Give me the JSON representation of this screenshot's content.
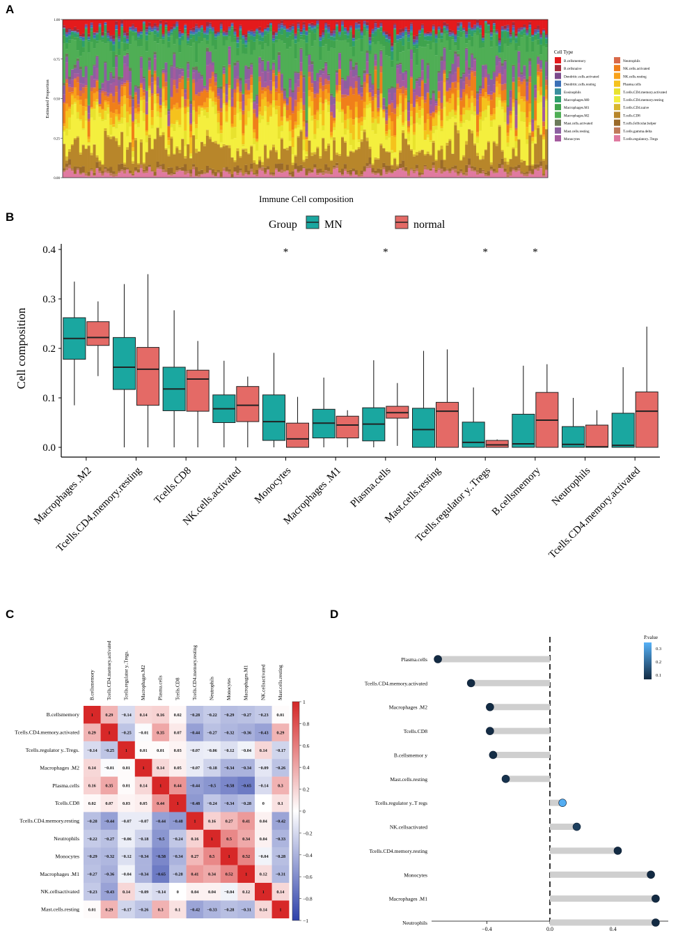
{
  "panel_labels": {
    "a": "A",
    "b": "B",
    "c": "C",
    "d": "D"
  },
  "chart_data": [
    {
      "id": "A",
      "type": "bar",
      "stacked": true,
      "title": "",
      "xlabel": "Immune Cell composition",
      "ylabel": "Estimated Proportion",
      "ylim": [
        0,
        1
      ],
      "yticks": [
        "0.00",
        "0.25",
        "0.50",
        "0.75",
        "1.00"
      ],
      "n_samples": 176,
      "legend_title": "Cell Type",
      "legend_position": "right",
      "cell_types": [
        {
          "name": "B.cellsmemory",
          "color": "#e41a1c",
          "mean": 0.05
        },
        {
          "name": "B.cellsnaive",
          "color": "#a52a3a",
          "mean": 0.01
        },
        {
          "name": "Dendritic.cells.activated",
          "color": "#7b4a8c",
          "mean": 0.01
        },
        {
          "name": "Dendritic.cells.resting",
          "color": "#3b6fb6",
          "mean": 0.01
        },
        {
          "name": "Eosinophils",
          "color": "#3a8f9e",
          "mean": 0.005
        },
        {
          "name": "Macrophages.M0",
          "color": "#2e9e6b",
          "mean": 0.02
        },
        {
          "name": "Macrophages.M1",
          "color": "#3fa34d",
          "mean": 0.05
        },
        {
          "name": "Macrophages.M2",
          "color": "#4fae55",
          "mean": 0.18
        },
        {
          "name": "Mast.cells.activated",
          "color": "#6b7a5a",
          "mean": 0.01
        },
        {
          "name": "Mast.cells.resting",
          "color": "#8c5fa0",
          "mean": 0.05
        },
        {
          "name": "Monocytes",
          "color": "#a45a9e",
          "mean": 0.05
        },
        {
          "name": "Neutrophils",
          "color": "#d96a4a",
          "mean": 0.02
        },
        {
          "name": "NK.cells.activated",
          "color": "#f07f1a",
          "mean": 0.07
        },
        {
          "name": "NK.cells.resting",
          "color": "#f9a21a",
          "mean": 0.03
        },
        {
          "name": "Plasma.cells",
          "color": "#f5c21d",
          "mean": 0.05
        },
        {
          "name": "T.cells.CD4.memory.activated",
          "color": "#e8e22e",
          "mean": 0.04
        },
        {
          "name": "T.cells.CD4.memory.resting",
          "color": "#f4ef3e",
          "mean": 0.15
        },
        {
          "name": "T.cells.CD4.naive",
          "color": "#d8b62e",
          "mean": 0.01
        },
        {
          "name": "T.cells.CD8",
          "color": "#b8862a",
          "mean": 0.11
        },
        {
          "name": "T.cells.follicular.helper",
          "color": "#9a6a2a",
          "mean": 0.02
        },
        {
          "name": "T.cells.gamma.delta",
          "color": "#c07a5a",
          "mean": 0.01
        },
        {
          "name": "T.cells.regulatory..Tregs",
          "color": "#e07aa0",
          "mean": 0.03
        }
      ]
    },
    {
      "id": "B",
      "type": "box",
      "xlabel": "",
      "ylabel": "Cell composition",
      "ylim": [
        0,
        0.4
      ],
      "yticks": [
        "0.0",
        "0.1",
        "0.2",
        "0.3",
        "0.4"
      ],
      "legend_title": "Group",
      "legend_position": "top",
      "groups": [
        {
          "name": "MN",
          "color": "#1aa7a0"
        },
        {
          "name": "normal",
          "color": "#e46a66"
        }
      ],
      "categories": [
        "Macrophages.M2",
        "T.cells.CD4.memory.resting",
        "T.cells.CD8",
        "NK.cells.activated",
        "Monocytes",
        "Macrophages.M1",
        "Plasma.cells",
        "Mast.cells.resting",
        "T.cells.regulatory..Tregs",
        "B.cells.memory",
        "Neutrophils",
        "T.cells.CD4.memory.activated"
      ],
      "category_labels": [
        "Macrophages .M2",
        "Tcells.CD4.memory.resting",
        "Tcells.CD8",
        "NK.cells.activated",
        "Monocytes",
        "Macrophages .M1",
        "Plasma.cells",
        "Mast.cells.resting",
        "Tcells.regulator y..Tregs",
        "B.cellsmemory",
        "Neutrophils",
        "Tcells.CD4.memory.activated"
      ],
      "significance": [
        "",
        "",
        "",
        "",
        "*",
        "",
        "*",
        "",
        "*",
        "*",
        "",
        ""
      ],
      "series": [
        {
          "name": "MN",
          "boxes": [
            [
              0.085,
              0.178,
              0.22,
              0.262,
              0.335
            ],
            [
              0.0,
              0.117,
              0.162,
              0.222,
              0.33
            ],
            [
              0.0,
              0.074,
              0.118,
              0.162,
              0.277
            ],
            [
              0.0,
              0.05,
              0.078,
              0.106,
              0.175
            ],
            [
              0.0,
              0.014,
              0.052,
              0.106,
              0.191
            ],
            [
              0.0,
              0.019,
              0.049,
              0.077,
              0.141
            ],
            [
              0.0,
              0.013,
              0.047,
              0.08,
              0.176
            ],
            [
              0.0,
              0.0,
              0.036,
              0.079,
              0.195
            ],
            [
              0.0,
              0.0,
              0.01,
              0.051,
              0.121
            ],
            [
              0.0,
              0.0,
              0.007,
              0.067,
              0.165
            ],
            [
              0.0,
              0.0,
              0.006,
              0.042,
              0.1
            ],
            [
              0.0,
              0.0,
              0.004,
              0.069,
              0.162
            ]
          ]
        },
        {
          "name": "normal",
          "boxes": [
            [
              0.144,
              0.206,
              0.222,
              0.254,
              0.295
            ],
            [
              0.0,
              0.085,
              0.158,
              0.202,
              0.35
            ],
            [
              0.0,
              0.073,
              0.138,
              0.156,
              0.215
            ],
            [
              0.0,
              0.052,
              0.085,
              0.123,
              0.143
            ],
            [
              0.0,
              0.0,
              0.017,
              0.049,
              0.102
            ],
            [
              0.0,
              0.019,
              0.045,
              0.063,
              0.075
            ],
            [
              0.003,
              0.059,
              0.07,
              0.083,
              0.13
            ],
            [
              0.0,
              0.0,
              0.073,
              0.091,
              0.198
            ],
            [
              0.0,
              0.0,
              0.005,
              0.014,
              0.016
            ],
            [
              0.003,
              0.0,
              0.055,
              0.111,
              0.168
            ],
            [
              0.0,
              0.0,
              0.001,
              0.045,
              0.075
            ],
            [
              0.0,
              0.0,
              0.073,
              0.112,
              0.244
            ]
          ]
        }
      ]
    },
    {
      "id": "C",
      "type": "heatmap",
      "title": "",
      "color_range": [
        -1,
        1
      ],
      "colorbar_ticks": [
        "1",
        "0.8",
        "0.6",
        "0.4",
        "0.2",
        "0",
        "−0.2",
        "−0.4",
        "−0.6",
        "−0.8",
        "−1"
      ],
      "row_labels": [
        "B.cellsmemory",
        "Tcells.CD4.memory.activated",
        "Tcells.regulator y..Tregs.",
        "Macrophages .M2",
        "Plasma.cells",
        "Tcells.CD8",
        "Tcells.CD4.memory.resting",
        "Neutrophils",
        "Monocytes",
        "Macrophages .M1",
        "NK.cellsactivated",
        "Mast.cells.resting"
      ],
      "col_labels": [
        "B.cellsmemory",
        "Tcells.CD4.memory.activated",
        "Tcells.regulator y..Tregs.",
        "Macrophages.M2",
        "Plasma.cells",
        "Tcells.CD8",
        "Tcells.CD4.memory.resting",
        "Neutrophils",
        "Monocytes",
        "Macrophages.M1",
        "NK.cellsactivated",
        "Mast.cells.resting"
      ],
      "values": [
        [
          1,
          0.29,
          -0.14,
          0.14,
          0.16,
          0.02,
          -0.28,
          -0.22,
          -0.29,
          -0.27,
          -0.23,
          0.01
        ],
        [
          0.29,
          1,
          -0.25,
          -0.01,
          0.35,
          0.07,
          -0.44,
          -0.27,
          -0.32,
          -0.36,
          -0.43,
          0.29
        ],
        [
          -0.14,
          -0.25,
          1,
          0.01,
          0.01,
          0.03,
          -0.07,
          -0.06,
          -0.12,
          -0.04,
          0.14,
          -0.17
        ],
        [
          0.14,
          -0.01,
          0.01,
          1,
          0.14,
          0.05,
          -0.07,
          -0.18,
          -0.34,
          -0.34,
          -0.09,
          -0.26
        ],
        [
          0.16,
          0.35,
          0.01,
          0.14,
          1,
          0.44,
          -0.44,
          -0.5,
          -0.58,
          -0.65,
          -0.14,
          0.3
        ],
        [
          0.02,
          0.07,
          0.03,
          0.05,
          0.44,
          1,
          -0.48,
          -0.24,
          -0.34,
          -0.28,
          0,
          0.1
        ],
        [
          -0.28,
          -0.44,
          -0.07,
          -0.07,
          -0.44,
          -0.48,
          1,
          0.16,
          0.27,
          0.41,
          0.04,
          -0.42
        ],
        [
          -0.22,
          -0.27,
          -0.06,
          -0.18,
          -0.5,
          -0.24,
          0.16,
          1,
          0.5,
          0.34,
          0.04,
          -0.33
        ],
        [
          -0.29,
          -0.32,
          -0.12,
          -0.34,
          -0.58,
          -0.34,
          0.27,
          0.5,
          1,
          0.52,
          -0.04,
          -0.28
        ],
        [
          -0.27,
          -0.36,
          -0.04,
          -0.34,
          -0.65,
          -0.28,
          0.41,
          0.34,
          0.52,
          1,
          0.12,
          -0.31
        ],
        [
          -0.23,
          -0.43,
          0.14,
          -0.09,
          -0.14,
          0,
          0.04,
          0.04,
          -0.04,
          0.12,
          1,
          0.14
        ],
        [
          0.01,
          0.29,
          -0.17,
          -0.26,
          0.3,
          0.1,
          -0.42,
          -0.33,
          -0.28,
          -0.31,
          0.14,
          1
        ]
      ]
    },
    {
      "id": "D",
      "type": "lollipop",
      "xlim": [
        -0.75,
        0.75
      ],
      "xticks": [
        "−0.4",
        "0.0",
        "0.4"
      ],
      "legend_title": "P.value",
      "legend_ticks": [
        "0.3",
        "0.2",
        "0.1"
      ],
      "legend_position": "top-right",
      "categories": [
        "Plasma.cells",
        "Tcells.CD4.memory.activated",
        "Macrophages .M2",
        "Tcells.CD8",
        "B.cellsmemor y",
        "Mast.cells.resting",
        "Tcells.regulator y..T regs",
        "NK.cellsactivated",
        "Tcells.CD4.memory.resting",
        "Monocytes",
        "Macrophages .M1",
        "Neutrophils"
      ],
      "values": [
        -0.71,
        -0.5,
        -0.38,
        -0.38,
        -0.36,
        -0.28,
        0.08,
        0.17,
        0.43,
        0.64,
        0.67,
        0.67
      ],
      "pvalues": [
        0.0,
        0.0,
        0.002,
        0.003,
        0.004,
        0.02,
        0.32,
        0.05,
        0.0,
        0.0,
        0.0,
        0.0
      ]
    }
  ]
}
